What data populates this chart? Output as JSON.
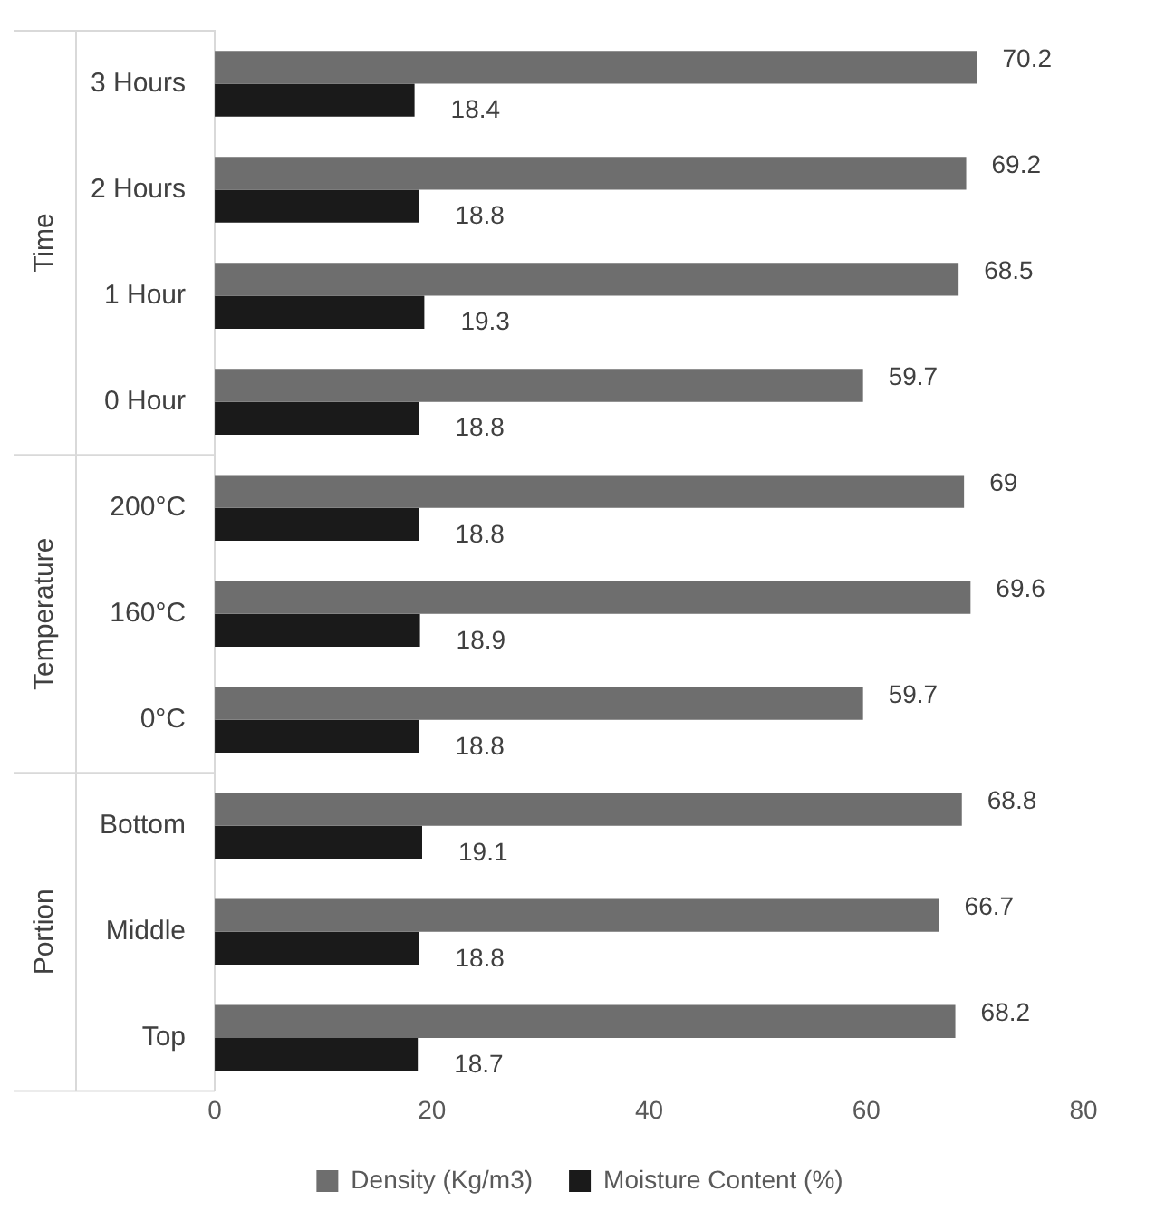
{
  "chart_data": {
    "type": "bar",
    "orientation": "horizontal",
    "categories": [
      "3 Hours",
      "2 Hours",
      "1 Hour",
      "0 Hour",
      "200°C",
      "160°C",
      "0°C",
      "Bottom",
      "Middle",
      "Top"
    ],
    "series": [
      {
        "name": "Density (Kg/m3)",
        "color": "#6e6e6e",
        "values": [
          70.2,
          69.2,
          68.5,
          59.7,
          69,
          69.6,
          59.7,
          68.8,
          66.7,
          68.2
        ]
      },
      {
        "name": "Moisture Content (%)",
        "color": "#1a1a1a",
        "values": [
          18.4,
          18.8,
          19.3,
          18.8,
          18.8,
          18.9,
          18.8,
          19.1,
          18.8,
          18.7
        ]
      }
    ],
    "xlim": [
      0,
      80
    ],
    "xticks": [
      0,
      20,
      40,
      60,
      80
    ],
    "grid": false,
    "legend": "bottom",
    "data_labels": true,
    "annotations": [
      "Time",
      "Temperature",
      "Portion"
    ]
  }
}
